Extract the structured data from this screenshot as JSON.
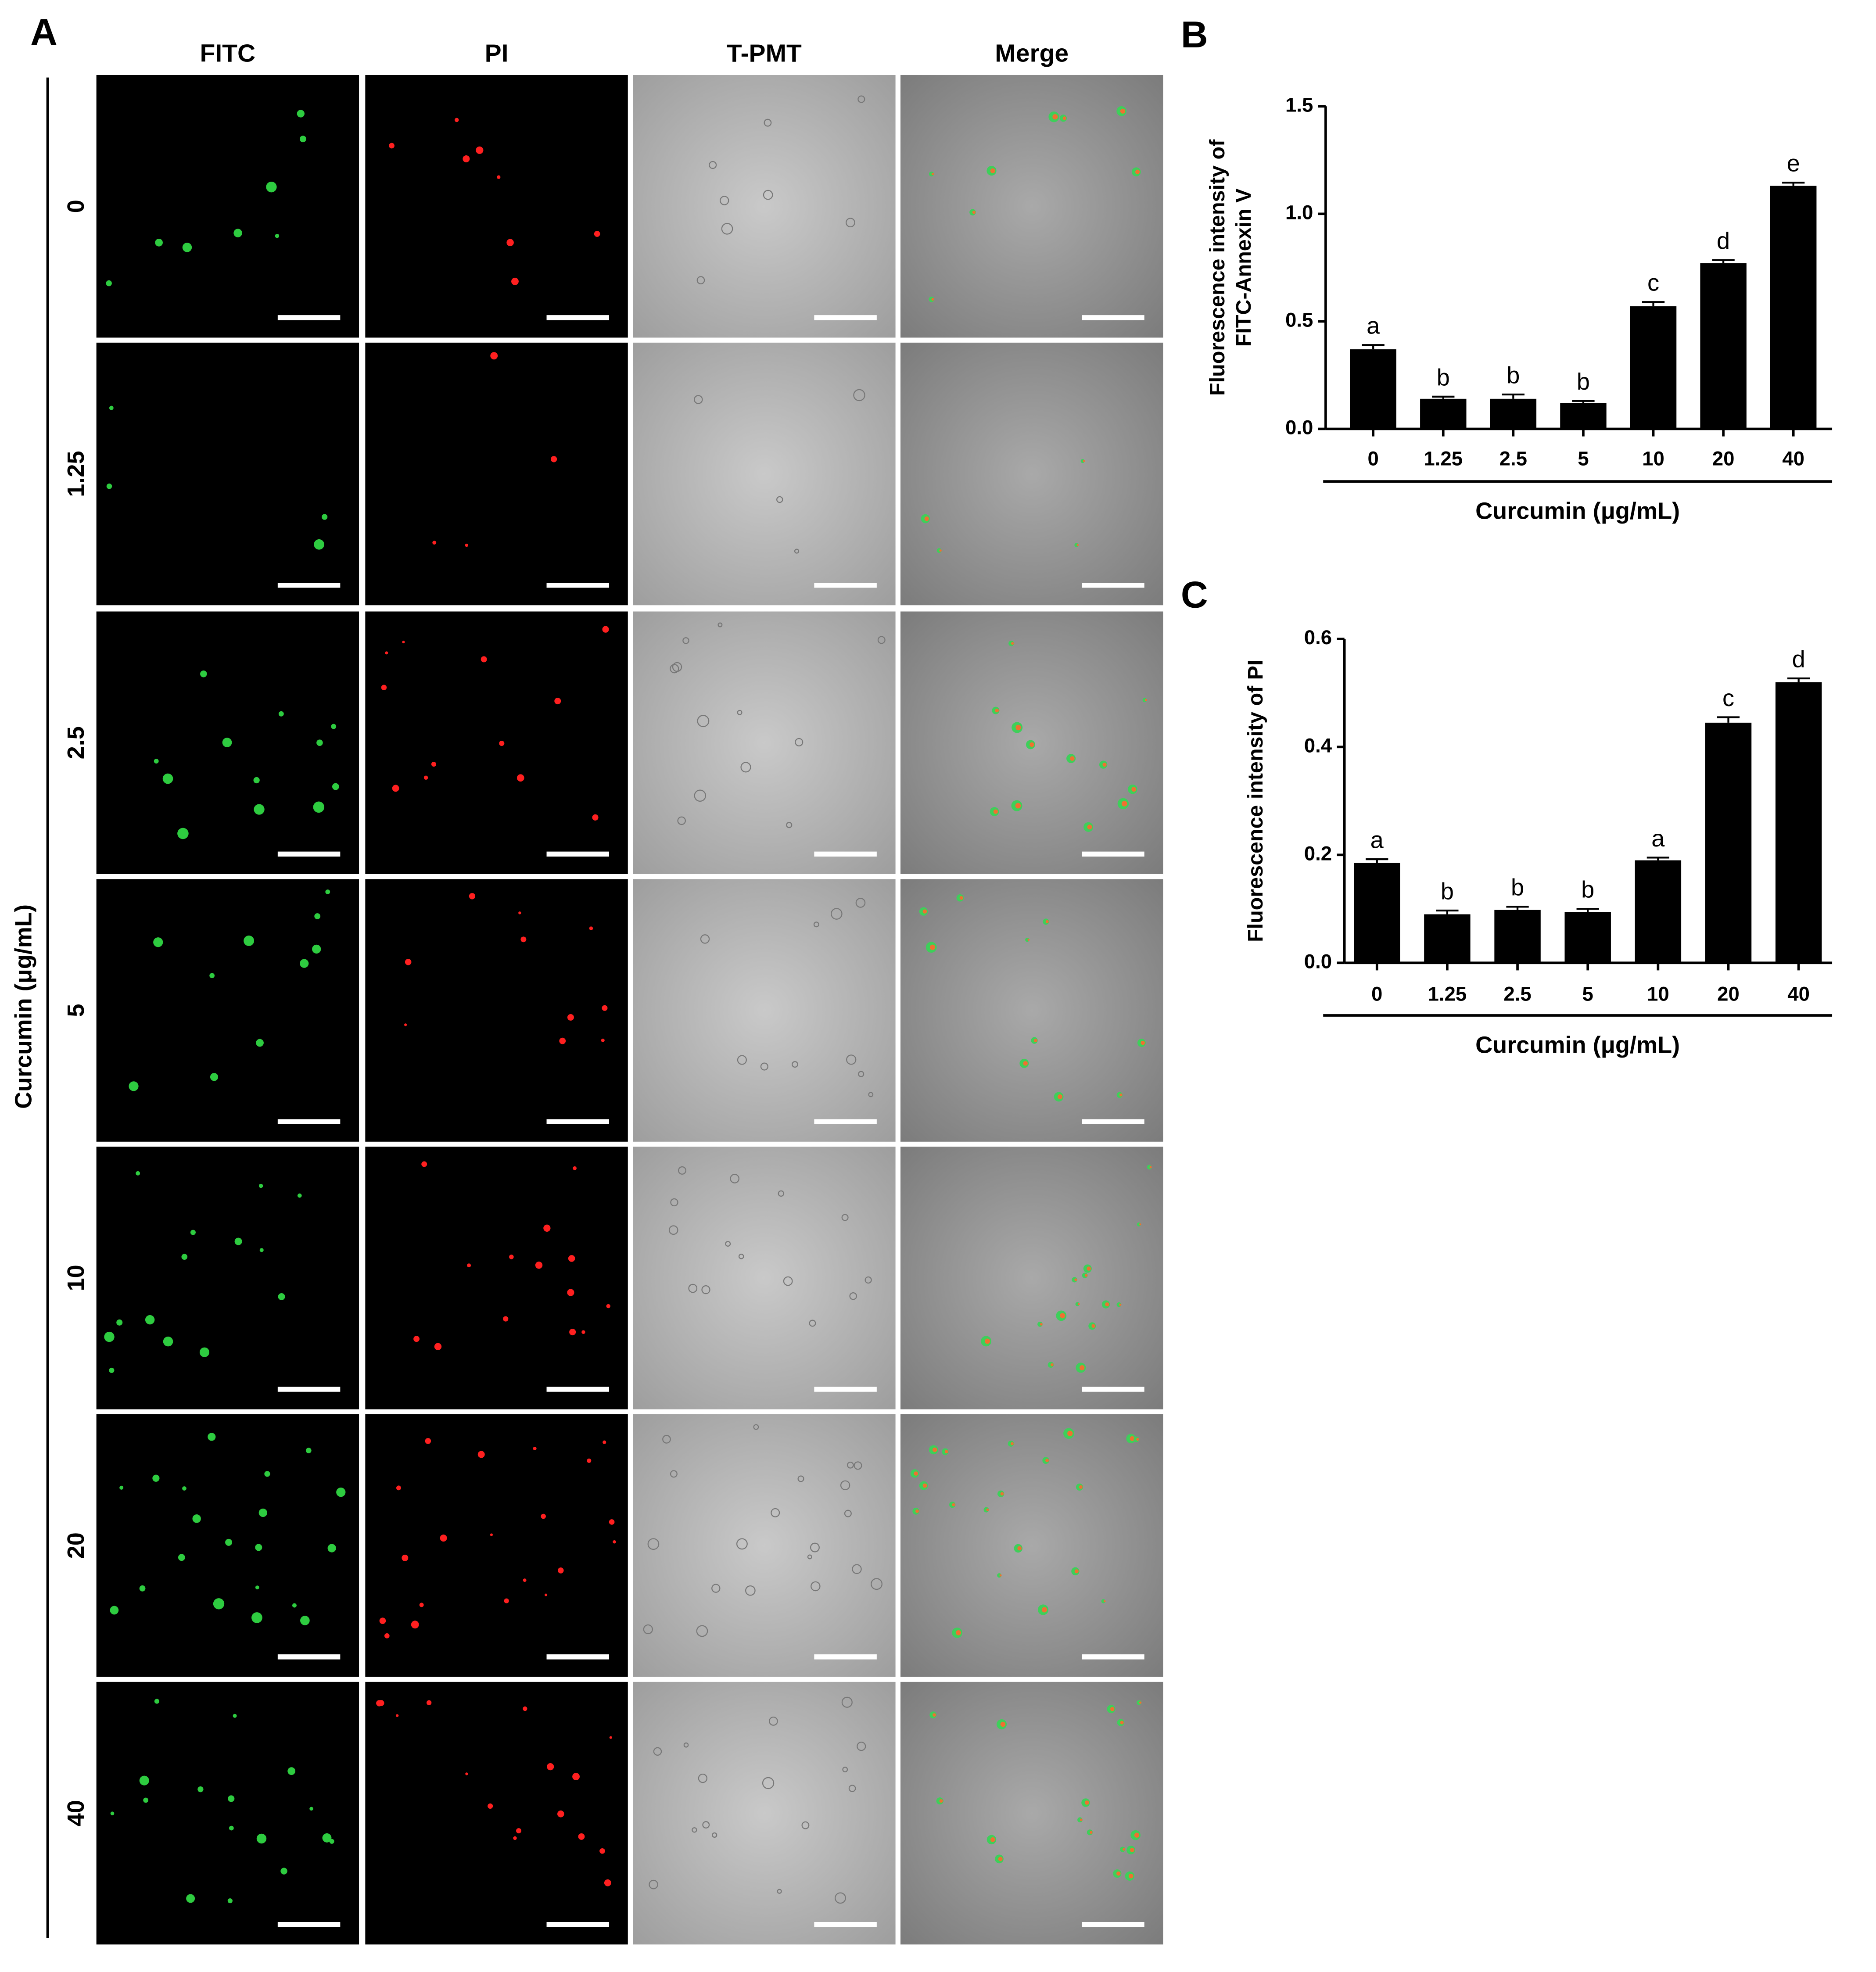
{
  "panel_a": {
    "label": "A",
    "columns": [
      "FITC",
      "PI",
      "T-PMT",
      "Merge"
    ],
    "rows": [
      "0",
      "1.25",
      "2.5",
      "5",
      "10",
      "20",
      "40"
    ],
    "axis_label": "Curcumin (μg/mL)"
  },
  "chart_data": [
    {
      "type": "bar",
      "panel_label": "B",
      "ylabel": [
        "Fluorescence intensity of",
        "FITC-Annexin V"
      ],
      "xlabel": "Curcumin (μg/mL)",
      "categories": [
        "0",
        "1.25",
        "2.5",
        "5",
        "10",
        "20",
        "40"
      ],
      "values": [
        0.37,
        0.14,
        0.14,
        0.12,
        0.57,
        0.77,
        1.13
      ],
      "errors": [
        0.02,
        0.01,
        0.02,
        0.01,
        0.02,
        0.015,
        0.015
      ],
      "annotations": [
        "a",
        "b",
        "b",
        "b",
        "c",
        "d",
        "e"
      ],
      "color": "#000000",
      "ylim": [
        0,
        1.5
      ],
      "yticks": [
        {
          "value": 0,
          "label": "0.0"
        },
        0.5,
        {
          "value": 1,
          "label": "1.0"
        },
        1.5
      ]
    },
    {
      "type": "bar",
      "panel_label": "C",
      "ylabel": [
        "Fluorescence intensity of PI"
      ],
      "xlabel": "Curcumin (μg/mL)",
      "categories": [
        "0",
        "1.25",
        "2.5",
        "5",
        "10",
        "20",
        "40"
      ],
      "values": [
        0.185,
        0.09,
        0.098,
        0.094,
        0.19,
        0.445,
        0.52
      ],
      "errors": [
        0.007,
        0.007,
        0.006,
        0.006,
        0.005,
        0.01,
        0.007
      ],
      "annotations": [
        "a",
        "b",
        "b",
        "b",
        "a",
        "c",
        "d"
      ],
      "color": "#000000",
      "ylim": [
        0,
        0.6
      ],
      "yticks": [
        {
          "value": 0,
          "label": "0.0"
        },
        0.2,
        0.4,
        0.6
      ]
    }
  ]
}
